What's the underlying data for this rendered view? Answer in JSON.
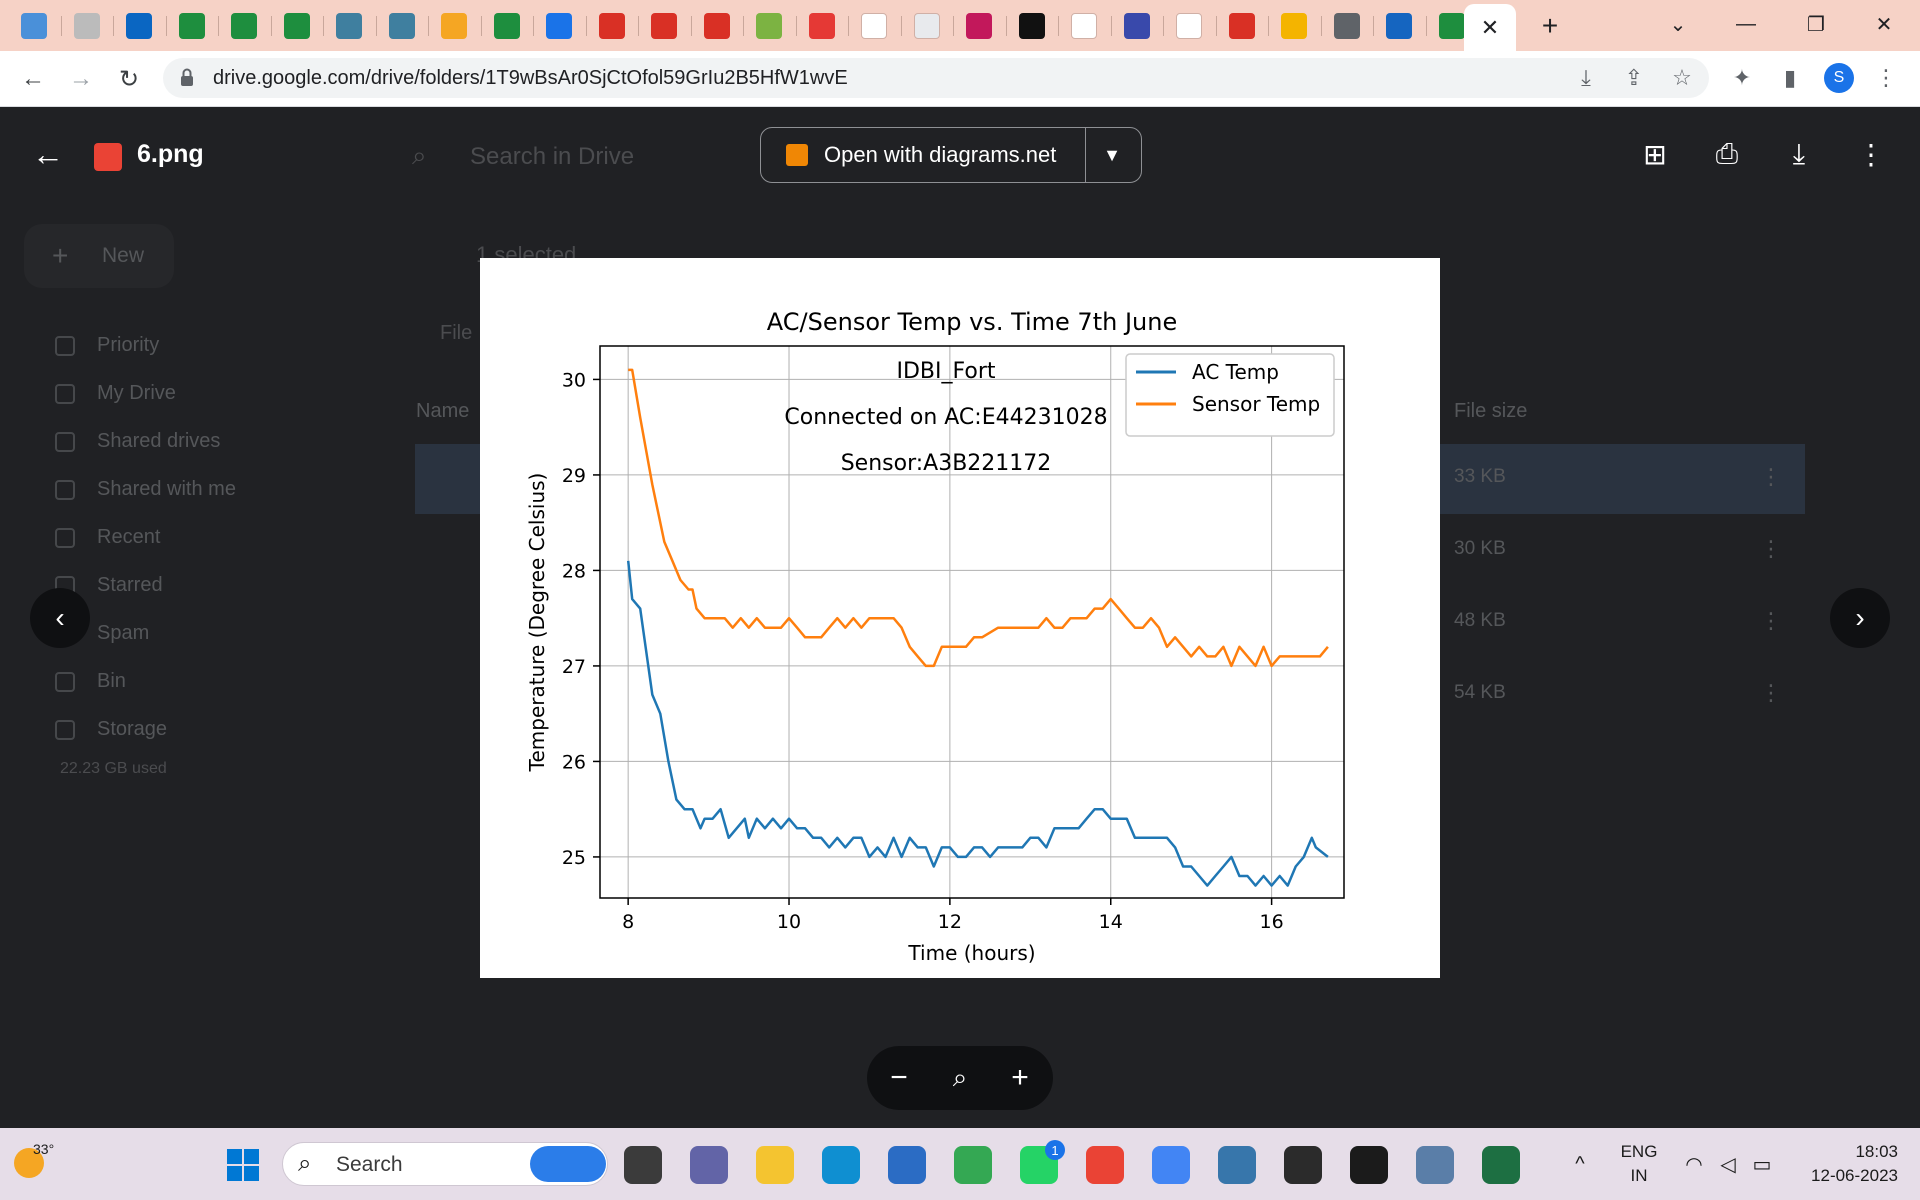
{
  "browser": {
    "url": "drive.google.com/drive/folders/1T9wBsAr0SjCtOfol59GrIu2B5HfW1wvE",
    "profile_initial": "S",
    "active_tab_close": "✕",
    "new_tab": "+"
  },
  "drive": {
    "search_placeholder": "Search in Drive",
    "new_label": "New",
    "selected_label": "1 selected",
    "filter_label": "File",
    "name_header": "Name",
    "size_header": "File size",
    "storage_used": "22.23 GB used",
    "nav": [
      "Priority",
      "My Drive",
      "Shared drives",
      "Shared with me",
      "Recent",
      "Starred",
      "Spam",
      "Bin",
      "Storage"
    ],
    "file_sizes": [
      "33 KB",
      "30 KB",
      "48 KB",
      "54 KB"
    ]
  },
  "viewer": {
    "file_name": "6.png",
    "open_with_label": "Open with diagrams.net"
  },
  "chart_data": {
    "type": "line",
    "title": "AC/Sensor Temp vs. Time 7th June",
    "xlabel": "Time (hours)",
    "ylabel": "Temperature (Degree Celsius)",
    "xlim": [
      7.65,
      16.9
    ],
    "ylim": [
      24.57,
      30.35
    ],
    "xticks": [
      8,
      10,
      12,
      14,
      16
    ],
    "yticks": [
      25,
      26,
      27,
      28,
      29,
      30
    ],
    "grid": true,
    "legend_position": "top-right",
    "annotations": [
      "IDBI_Fort",
      "Connected on AC:E44231028",
      "Sensor:A3B221172"
    ],
    "series": [
      {
        "name": "AC Temp",
        "color": "#1f77b4",
        "x": [
          8.0,
          8.05,
          8.15,
          8.3,
          8.4,
          8.5,
          8.6,
          8.7,
          8.8,
          8.9,
          8.95,
          9.05,
          9.15,
          9.25,
          9.35,
          9.45,
          9.5,
          9.6,
          9.7,
          9.8,
          9.9,
          10.0,
          10.1,
          10.2,
          10.3,
          10.4,
          10.5,
          10.6,
          10.7,
          10.8,
          10.9,
          11.0,
          11.1,
          11.2,
          11.3,
          11.4,
          11.5,
          11.6,
          11.7,
          11.8,
          11.9,
          12.0,
          12.1,
          12.2,
          12.3,
          12.4,
          12.5,
          12.6,
          12.7,
          12.8,
          12.9,
          13.0,
          13.1,
          13.2,
          13.3,
          13.5,
          13.6,
          13.7,
          13.8,
          13.9,
          14.0,
          14.1,
          14.2,
          14.3,
          14.5,
          14.7,
          14.8,
          14.9,
          15.0,
          15.1,
          15.2,
          15.3,
          15.4,
          15.5,
          15.6,
          15.7,
          15.8,
          15.9,
          16.0,
          16.1,
          16.2,
          16.3,
          16.4,
          16.5,
          16.55,
          16.7
        ],
        "y": [
          28.1,
          27.7,
          27.6,
          26.7,
          26.5,
          26.0,
          25.6,
          25.5,
          25.5,
          25.3,
          25.4,
          25.4,
          25.5,
          25.2,
          25.3,
          25.4,
          25.2,
          25.4,
          25.3,
          25.4,
          25.3,
          25.4,
          25.3,
          25.3,
          25.2,
          25.2,
          25.1,
          25.2,
          25.1,
          25.2,
          25.2,
          25.0,
          25.1,
          25.0,
          25.2,
          25.0,
          25.2,
          25.1,
          25.1,
          24.9,
          25.1,
          25.1,
          25.0,
          25.0,
          25.1,
          25.1,
          25.0,
          25.1,
          25.1,
          25.1,
          25.1,
          25.2,
          25.2,
          25.1,
          25.3,
          25.3,
          25.3,
          25.4,
          25.5,
          25.5,
          25.4,
          25.4,
          25.4,
          25.2,
          25.2,
          25.2,
          25.1,
          24.9,
          24.9,
          24.8,
          24.7,
          24.8,
          24.9,
          25.0,
          24.8,
          24.8,
          24.7,
          24.8,
          24.7,
          24.8,
          24.7,
          24.9,
          25.0,
          25.2,
          25.1,
          25.0
        ]
      },
      {
        "name": "Sensor Temp",
        "color": "#ff7f0e",
        "x": [
          8.0,
          8.05,
          8.15,
          8.3,
          8.45,
          8.55,
          8.65,
          8.75,
          8.8,
          8.85,
          8.95,
          9.1,
          9.2,
          9.3,
          9.4,
          9.5,
          9.6,
          9.7,
          9.8,
          9.9,
          10.0,
          10.1,
          10.2,
          10.3,
          10.4,
          10.5,
          10.6,
          10.7,
          10.8,
          10.9,
          11.0,
          11.1,
          11.2,
          11.3,
          11.4,
          11.5,
          11.6,
          11.7,
          11.8,
          11.9,
          12.0,
          12.1,
          12.2,
          12.3,
          12.4,
          12.6,
          12.8,
          13.0,
          13.1,
          13.2,
          13.3,
          13.4,
          13.5,
          13.6,
          13.7,
          13.8,
          13.9,
          14.0,
          14.1,
          14.2,
          14.3,
          14.4,
          14.5,
          14.6,
          14.7,
          14.8,
          14.9,
          15.0,
          15.1,
          15.2,
          15.3,
          15.4,
          15.5,
          15.6,
          15.7,
          15.8,
          15.9,
          16.0,
          16.1,
          16.2,
          16.3,
          16.4,
          16.5,
          16.6,
          16.7
        ],
        "y": [
          30.1,
          30.1,
          29.6,
          28.9,
          28.3,
          28.1,
          27.9,
          27.8,
          27.8,
          27.6,
          27.5,
          27.5,
          27.5,
          27.4,
          27.5,
          27.4,
          27.5,
          27.4,
          27.4,
          27.4,
          27.5,
          27.4,
          27.3,
          27.3,
          27.3,
          27.4,
          27.5,
          27.4,
          27.5,
          27.4,
          27.5,
          27.5,
          27.5,
          27.5,
          27.4,
          27.2,
          27.1,
          27.0,
          27.0,
          27.2,
          27.2,
          27.2,
          27.2,
          27.3,
          27.3,
          27.4,
          27.4,
          27.4,
          27.4,
          27.5,
          27.4,
          27.4,
          27.5,
          27.5,
          27.5,
          27.6,
          27.6,
          27.7,
          27.6,
          27.5,
          27.4,
          27.4,
          27.5,
          27.4,
          27.2,
          27.3,
          27.2,
          27.1,
          27.2,
          27.1,
          27.1,
          27.2,
          27.0,
          27.2,
          27.1,
          27.0,
          27.2,
          27.0,
          27.1,
          27.1,
          27.1,
          27.1,
          27.1,
          27.1,
          27.2
        ]
      }
    ]
  },
  "taskbar": {
    "search_text": "Search",
    "weather": "33°",
    "language": "ENG",
    "region": "IN",
    "time": "18:03",
    "date": "12-06-2023",
    "whatsapp_badge": "1"
  }
}
